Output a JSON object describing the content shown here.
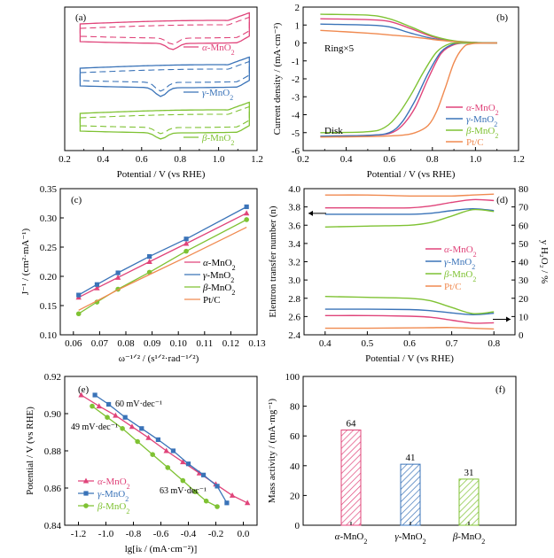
{
  "colors": {
    "alpha": "#e0447a",
    "gamma": "#3a73b8",
    "beta": "#7fc233",
    "ptc": "#f08a50",
    "axis": "#000000"
  },
  "chart_data": [
    {
      "panel": "(a)",
      "type": "line",
      "xlabel": "Potential / V (vs RHE)",
      "xlim": [
        0.2,
        1.2
      ],
      "xticks": [
        "0.2",
        "0.4",
        "0.6",
        "0.8",
        "1.0",
        "1.2"
      ],
      "series": [
        {
          "name": "α-MnO2",
          "sub": "2",
          "color": "#e0447a",
          "offset": 0
        },
        {
          "name": "γ-MnO2",
          "sub": "2",
          "color": "#3a73b8",
          "offset": 1
        },
        {
          "name": "β-MnO2",
          "sub": "2",
          "color": "#7fc233",
          "offset": 2
        }
      ],
      "legend_labels": [
        {
          "pre": "α",
          "text": "-MnO",
          "sub": "2",
          "color": "#e0447a"
        },
        {
          "pre": "γ",
          "text": "-MnO",
          "sub": "2",
          "color": "#3a73b8"
        },
        {
          "pre": "β",
          "text": "-MnO",
          "sub": "2",
          "color": "#7fc233"
        }
      ]
    },
    {
      "panel": "(b)",
      "type": "line",
      "xlabel": "Potential / V (vs RHE)",
      "ylabel": "Current density / (mA·cm⁻²)",
      "xlim": [
        0.2,
        1.2
      ],
      "ylim": [
        -6,
        2
      ],
      "xticks": [
        "0.2",
        "0.4",
        "0.6",
        "0.8",
        "1.0",
        "1.2"
      ],
      "yticks": [
        "2",
        "1",
        "0",
        "-1",
        "-2",
        "-3",
        "-4",
        "-5",
        "-6"
      ],
      "annotations": [
        "Ring×5",
        "Disk"
      ],
      "disk": [
        {
          "name": "α-MnO2",
          "color": "#e0447a",
          "x": [
            0.28,
            0.5,
            0.6,
            0.66,
            0.72,
            0.78,
            0.84,
            0.9,
            0.95,
            1.0,
            1.1
          ],
          "y": [
            -5.2,
            -5.15,
            -5.05,
            -4.6,
            -3.6,
            -2.0,
            -0.6,
            -0.1,
            0,
            0,
            0
          ]
        },
        {
          "name": "γ-MnO2",
          "color": "#3a73b8",
          "x": [
            0.28,
            0.5,
            0.6,
            0.66,
            0.72,
            0.78,
            0.84,
            0.9,
            0.95,
            1.0,
            1.1
          ],
          "y": [
            -5.2,
            -5.15,
            -5.0,
            -4.4,
            -3.2,
            -1.7,
            -0.5,
            -0.05,
            0,
            0,
            0
          ]
        },
        {
          "name": "β-MnO2",
          "color": "#7fc233",
          "x": [
            0.28,
            0.5,
            0.58,
            0.64,
            0.7,
            0.76,
            0.82,
            0.88,
            0.95,
            1.0,
            1.1
          ],
          "y": [
            -5.0,
            -4.95,
            -4.7,
            -4.0,
            -2.9,
            -1.6,
            -0.5,
            -0.05,
            0,
            0,
            0
          ]
        },
        {
          "name": "Pt/C",
          "color": "#f08a50",
          "x": [
            0.28,
            0.5,
            0.65,
            0.72,
            0.78,
            0.82,
            0.86,
            0.9,
            0.94,
            0.98,
            1.1
          ],
          "y": [
            -5.25,
            -5.22,
            -5.15,
            -5.0,
            -4.6,
            -3.8,
            -2.5,
            -1.1,
            -0.3,
            -0.05,
            0
          ]
        }
      ],
      "ring": [
        {
          "name": "α-MnO2",
          "color": "#e0447a",
          "x": [
            0.28,
            0.5,
            0.6,
            0.7,
            0.8,
            0.9,
            1.0,
            1.1
          ],
          "y": [
            1.35,
            1.3,
            1.2,
            0.8,
            0.35,
            0.1,
            0.02,
            0
          ]
        },
        {
          "name": "γ-MnO2",
          "color": "#3a73b8",
          "x": [
            0.28,
            0.5,
            0.6,
            0.7,
            0.8,
            0.9,
            1.0,
            1.1
          ],
          "y": [
            1.05,
            1.0,
            0.9,
            0.55,
            0.25,
            0.08,
            0.02,
            0
          ]
        },
        {
          "name": "β-MnO2",
          "color": "#7fc233",
          "x": [
            0.28,
            0.5,
            0.6,
            0.7,
            0.8,
            0.9,
            1.0,
            1.1
          ],
          "y": [
            1.6,
            1.55,
            1.35,
            0.9,
            0.4,
            0.12,
            0.03,
            0
          ]
        },
        {
          "name": "Pt/C",
          "color": "#f08a50",
          "x": [
            0.28,
            0.5,
            0.6,
            0.7,
            0.8,
            0.9,
            1.0,
            1.1
          ],
          "y": [
            0.7,
            0.55,
            0.45,
            0.35,
            0.2,
            0.08,
            0.02,
            0
          ]
        }
      ],
      "legend_labels": [
        {
          "pre": "α",
          "text": "-MnO",
          "sub": "2",
          "color": "#e0447a"
        },
        {
          "pre": "γ",
          "text": "-MnO",
          "sub": "2",
          "color": "#3a73b8"
        },
        {
          "pre": "β",
          "text": "-MnO",
          "sub": "2",
          "color": "#7fc233"
        },
        {
          "pre": "",
          "text": "Pt/C",
          "sub": "",
          "color": "#f08a50"
        }
      ]
    },
    {
      "panel": "(c)",
      "type": "line",
      "xlabel": "ω⁻¹ᐟ² / (s¹ᐟ²·rad⁻¹ᐟ²)",
      "ylabel": "J⁻¹ / (cm²·mA⁻¹)",
      "xlim": [
        0.055,
        0.13
      ],
      "ylim": [
        0.1,
        0.35
      ],
      "xticks": [
        "0.06",
        "0.07",
        "0.08",
        "0.09",
        "0.10",
        "0.11",
        "0.12",
        "0.13"
      ],
      "yticks": [
        "0.35",
        "0.30",
        "0.25",
        "0.20",
        "0.15",
        "0.10"
      ],
      "x": [
        0.062,
        0.069,
        0.077,
        0.089,
        0.103,
        0.126
      ],
      "series": [
        {
          "name": "α-MnO2",
          "color": "#e0447a",
          "values": [
            0.164,
            0.18,
            0.198,
            0.225,
            0.256,
            0.308
          ]
        },
        {
          "name": "γ-MnO2",
          "color": "#3a73b8",
          "values": [
            0.168,
            0.186,
            0.206,
            0.234,
            0.264,
            0.319
          ]
        },
        {
          "name": "β-MnO2",
          "color": "#7fc233",
          "values": [
            0.136,
            0.156,
            0.178,
            0.207,
            0.243,
            0.297
          ]
        },
        {
          "name": "Pt/C",
          "color": "#f08a50",
          "values": [
            0.142,
            0.158,
            0.177,
            0.203,
            0.233,
            0.284
          ]
        }
      ],
      "legend_labels": [
        {
          "pre": "α",
          "text": "-MnO",
          "sub": "2",
          "color": "#e0447a"
        },
        {
          "pre": "γ",
          "text": "-MnO",
          "sub": "2",
          "color": "#3a73b8"
        },
        {
          "pre": "β",
          "text": "-MnO",
          "sub": "2",
          "color": "#7fc233"
        },
        {
          "pre": "",
          "text": "Pt/C",
          "sub": "",
          "color": "#f08a50"
        }
      ]
    },
    {
      "panel": "(d)",
      "type": "line",
      "xlabel": "Potential / V (vs RHE)",
      "ylabel": "Elentron transfer number (n)",
      "y2label": "y H₂O₂ / %",
      "xlim": [
        0.35,
        0.85
      ],
      "ylim": [
        2.4,
        4.0
      ],
      "y2lim": [
        0,
        80
      ],
      "xticks": [
        "0.4",
        "0.5",
        "0.6",
        "0.7",
        "0.8"
      ],
      "yticks": [
        "4.0",
        "3.8",
        "3.6",
        "3.4",
        "3.2",
        "3.0",
        "2.8",
        "2.6",
        "2.4"
      ],
      "y2ticks": [
        "80",
        "70",
        "60",
        "50",
        "40",
        "30",
        "20",
        "10",
        "0"
      ],
      "x": [
        0.4,
        0.5,
        0.6,
        0.65,
        0.7,
        0.75,
        0.8
      ],
      "n_series": [
        {
          "name": "α-MnO2",
          "color": "#e0447a",
          "values": [
            3.79,
            3.79,
            3.79,
            3.81,
            3.85,
            3.88,
            3.87
          ]
        },
        {
          "name": "γ-MnO2",
          "color": "#3a73b8",
          "values": [
            3.72,
            3.72,
            3.72,
            3.73,
            3.76,
            3.78,
            3.76
          ]
        },
        {
          "name": "β-MnO2",
          "color": "#7fc233",
          "values": [
            3.58,
            3.59,
            3.6,
            3.63,
            3.7,
            3.77,
            3.75
          ]
        },
        {
          "name": "Pt/C",
          "color": "#f08a50",
          "values": [
            3.93,
            3.93,
            3.92,
            3.92,
            3.92,
            3.93,
            3.94
          ]
        }
      ],
      "y_series": [
        {
          "name": "α-MnO2",
          "color": "#e0447a",
          "values": [
            10.5,
            10.5,
            10.2,
            9.6,
            8.0,
            6.4,
            6.6
          ]
        },
        {
          "name": "γ-MnO2",
          "color": "#3a73b8",
          "values": [
            14.0,
            14.0,
            13.8,
            13.2,
            12.0,
            11.0,
            11.8
          ]
        },
        {
          "name": "β-MnO2",
          "color": "#7fc233",
          "values": [
            21.0,
            20.5,
            20.0,
            18.6,
            15.0,
            11.6,
            12.6
          ]
        },
        {
          "name": "Pt/C",
          "color": "#f08a50",
          "values": [
            3.6,
            3.6,
            3.8,
            3.9,
            4.0,
            3.6,
            3.2
          ]
        }
      ],
      "legend_labels": [
        {
          "pre": "α",
          "text": "-MnO",
          "sub": "2",
          "color": "#e0447a"
        },
        {
          "pre": "γ",
          "text": "-MnO",
          "sub": "2",
          "color": "#3a73b8"
        },
        {
          "pre": "β",
          "text": "-MnO",
          "sub": "2",
          "color": "#7fc233"
        },
        {
          "pre": "",
          "text": "Pt/C",
          "sub": "",
          "color": "#f08a50"
        }
      ]
    },
    {
      "panel": "(e)",
      "type": "line",
      "xlabel": "lg[iₖ / (mA·cm⁻²)]",
      "ylabel": "Potential / V (vs RHE)",
      "xlim": [
        -1.3,
        0.1
      ],
      "ylim": [
        0.84,
        0.92
      ],
      "xticks": [
        "-1.2",
        "-1.0",
        "-0.8",
        "-0.6",
        "-0.4",
        "-0.2",
        "0.0"
      ],
      "yticks": [
        "0.92",
        "0.90",
        "0.88",
        "0.86",
        "0.84"
      ],
      "annotations": [
        "60 mV·dec⁻¹",
        "49 mV·dec⁻¹",
        "63 mV·dec⁻¹"
      ],
      "series": [
        {
          "name": "α-MnO2",
          "color": "#e0447a",
          "marker": "triangle",
          "x": [
            -1.18,
            -1.05,
            -0.93,
            -0.81,
            -0.69,
            -0.56,
            -0.44,
            -0.32,
            -0.2,
            -0.08,
            0.03
          ],
          "y": [
            0.91,
            0.904,
            0.899,
            0.893,
            0.887,
            0.88,
            0.874,
            0.868,
            0.862,
            0.856,
            0.852
          ]
        },
        {
          "name": "γ-MnO2",
          "color": "#3a73b8",
          "marker": "square",
          "x": [
            -1.08,
            -0.98,
            -0.86,
            -0.74,
            -0.62,
            -0.51,
            -0.4,
            -0.29,
            -0.19,
            -0.12
          ],
          "y": [
            0.91,
            0.905,
            0.898,
            0.892,
            0.886,
            0.88,
            0.873,
            0.867,
            0.861,
            0.852
          ]
        },
        {
          "name": "β-MnO2",
          "color": "#7fc233",
          "marker": "circle",
          "x": [
            -1.1,
            -0.99,
            -0.88,
            -0.77,
            -0.66,
            -0.55,
            -0.44,
            -0.35,
            -0.27,
            -0.19
          ],
          "y": [
            0.904,
            0.898,
            0.892,
            0.885,
            0.878,
            0.871,
            0.864,
            0.858,
            0.853,
            0.85
          ]
        }
      ],
      "legend_labels": [
        {
          "pre": "α",
          "text": "-MnO",
          "sub": "2",
          "color": "#e0447a"
        },
        {
          "pre": "γ",
          "text": "-MnO",
          "sub": "2",
          "color": "#3a73b8"
        },
        {
          "pre": "β",
          "text": "-MnO",
          "sub": "2",
          "color": "#7fc233"
        }
      ]
    },
    {
      "panel": "(f)",
      "type": "bar",
      "ylabel": "Mass activity / (mA·mg⁻¹)",
      "ylim": [
        0,
        100
      ],
      "yticks": [
        "100",
        "80",
        "60",
        "40",
        "20",
        "0"
      ],
      "categories": [
        "α-MnO2",
        "γ-MnO2",
        "β-MnO2"
      ],
      "values": [
        64,
        41,
        31
      ],
      "value_labels": [
        "64",
        "41",
        "31"
      ],
      "colors": [
        "#e0447a",
        "#3a73b8",
        "#7fc233"
      ],
      "category_labels": [
        {
          "pre": "α",
          "text": "-MnO",
          "sub": "2"
        },
        {
          "pre": "γ",
          "text": "-MnO",
          "sub": "2"
        },
        {
          "pre": "β",
          "text": "-MnO",
          "sub": "2"
        }
      ]
    }
  ]
}
